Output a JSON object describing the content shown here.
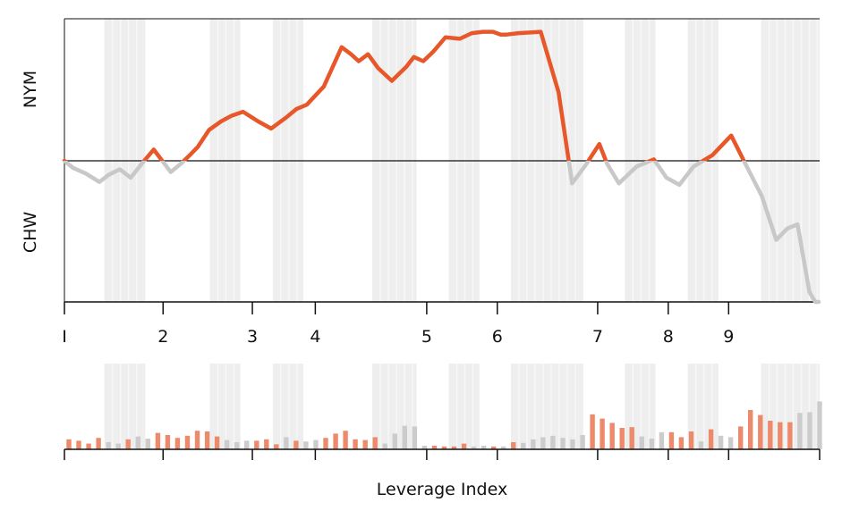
{
  "chart_data": {
    "type": "line",
    "xlabel": "Leverage Index",
    "ylabel_top": "NYM",
    "ylabel_bottom": "CHW",
    "ticks": [
      "I",
      "2",
      "3",
      "4",
      "5",
      "6",
      "7",
      "8",
      "9"
    ],
    "tick_positions": [
      1.0,
      2.16,
      3.21,
      3.95,
      5.26,
      6.09,
      7.27,
      8.1,
      8.81
    ],
    "xlim": [
      1.0,
      9.88
    ],
    "ylim": [
      -1.0,
      1.0
    ],
    "baseline": 0,
    "shaded_bands": [
      [
        1.47,
        1.95
      ],
      [
        2.71,
        3.07
      ],
      [
        3.45,
        3.81
      ],
      [
        4.62,
        5.14
      ],
      [
        5.52,
        5.88
      ],
      [
        6.25,
        7.1
      ],
      [
        7.59,
        7.95
      ],
      [
        8.33,
        8.69
      ],
      [
        9.19,
        9.88
      ]
    ],
    "line": {
      "x": [
        1.0,
        1.1,
        1.25,
        1.41,
        1.52,
        1.65,
        1.78,
        1.91,
        2.05,
        2.25,
        2.37,
        2.49,
        2.57,
        2.7,
        2.84,
        2.96,
        3.1,
        3.28,
        3.43,
        3.61,
        3.73,
        3.85,
        4.05,
        4.26,
        4.37,
        4.46,
        4.57,
        4.69,
        4.85,
        5.02,
        5.11,
        5.22,
        5.34,
        5.48,
        5.65,
        5.79,
        5.92,
        6.04,
        6.13,
        6.2,
        6.34,
        6.6,
        6.81,
        6.97,
        7.13,
        7.29,
        7.38,
        7.52,
        7.73,
        7.93,
        8.08,
        8.23,
        8.4,
        8.62,
        8.84,
        8.98,
        9.2,
        9.37,
        9.5,
        9.62,
        9.76,
        9.83,
        9.87
      ],
      "y": [
        0.0,
        -0.05,
        -0.09,
        -0.15,
        -0.1,
        -0.06,
        -0.12,
        -0.02,
        0.08,
        -0.08,
        -0.02,
        0.05,
        0.1,
        0.22,
        0.28,
        0.32,
        0.35,
        0.28,
        0.23,
        0.31,
        0.37,
        0.4,
        0.53,
        0.81,
        0.76,
        0.71,
        0.76,
        0.66,
        0.57,
        0.67,
        0.74,
        0.71,
        0.78,
        0.88,
        0.87,
        0.91,
        0.92,
        0.92,
        0.9,
        0.9,
        0.91,
        0.92,
        0.49,
        -0.16,
        -0.03,
        0.12,
        -0.02,
        -0.16,
        -0.04,
        0.01,
        -0.12,
        -0.17,
        -0.04,
        0.04,
        0.18,
        0.01,
        -0.25,
        -0.56,
        -0.48,
        -0.45,
        -0.93,
        -1.0,
        -1.0
      ]
    },
    "bars": {
      "values": [
        0.14,
        0.12,
        0.08,
        0.16,
        0.1,
        0.08,
        0.14,
        0.18,
        0.15,
        0.23,
        0.2,
        0.16,
        0.19,
        0.26,
        0.25,
        0.18,
        0.13,
        0.1,
        0.12,
        0.12,
        0.14,
        0.07,
        0.17,
        0.12,
        0.11,
        0.13,
        0.16,
        0.22,
        0.26,
        0.14,
        0.13,
        0.17,
        0.08,
        0.22,
        0.33,
        0.32,
        0.05,
        0.05,
        0.04,
        0.04,
        0.08,
        0.04,
        0.05,
        0.04,
        0.04,
        0.1,
        0.09,
        0.14,
        0.17,
        0.19,
        0.16,
        0.14,
        0.2,
        0.49,
        0.43,
        0.37,
        0.3,
        0.31,
        0.18,
        0.15,
        0.24,
        0.24,
        0.17,
        0.25,
        0.11,
        0.28,
        0.19,
        0.17,
        0.32,
        0.55,
        0.48,
        0.4,
        0.38,
        0.38,
        0.51,
        0.52,
        0.67
      ],
      "colors": [
        "orange",
        "orange",
        "orange",
        "orange",
        "gray",
        "gray",
        "orange",
        "gray",
        "gray",
        "orange",
        "orange",
        "orange",
        "orange",
        "orange",
        "orange",
        "orange",
        "gray",
        "gray",
        "gray",
        "orange",
        "orange",
        "orange",
        "gray",
        "orange",
        "gray",
        "gray",
        "orange",
        "orange",
        "orange",
        "orange",
        "orange",
        "orange",
        "gray",
        "gray",
        "gray",
        "gray",
        "gray",
        "orange",
        "orange",
        "orange",
        "orange",
        "gray",
        "gray",
        "orange",
        "gray",
        "orange",
        "gray",
        "gray",
        "gray",
        "gray",
        "gray",
        "gray",
        "gray",
        "orange",
        "orange",
        "orange",
        "orange",
        "orange",
        "gray",
        "gray",
        "gray",
        "orange",
        "orange",
        "orange",
        "gray",
        "orange",
        "gray",
        "gray",
        "orange",
        "orange",
        "orange",
        "orange",
        "orange",
        "orange",
        "gray",
        "gray",
        "gray"
      ]
    },
    "colors": {
      "above": "#e8572a",
      "below": "#c8c8c8",
      "band": "#eeeeee",
      "bar_orange": "#ec8a6b",
      "bar_gray": "#cccccc",
      "axis": "#111111"
    }
  }
}
